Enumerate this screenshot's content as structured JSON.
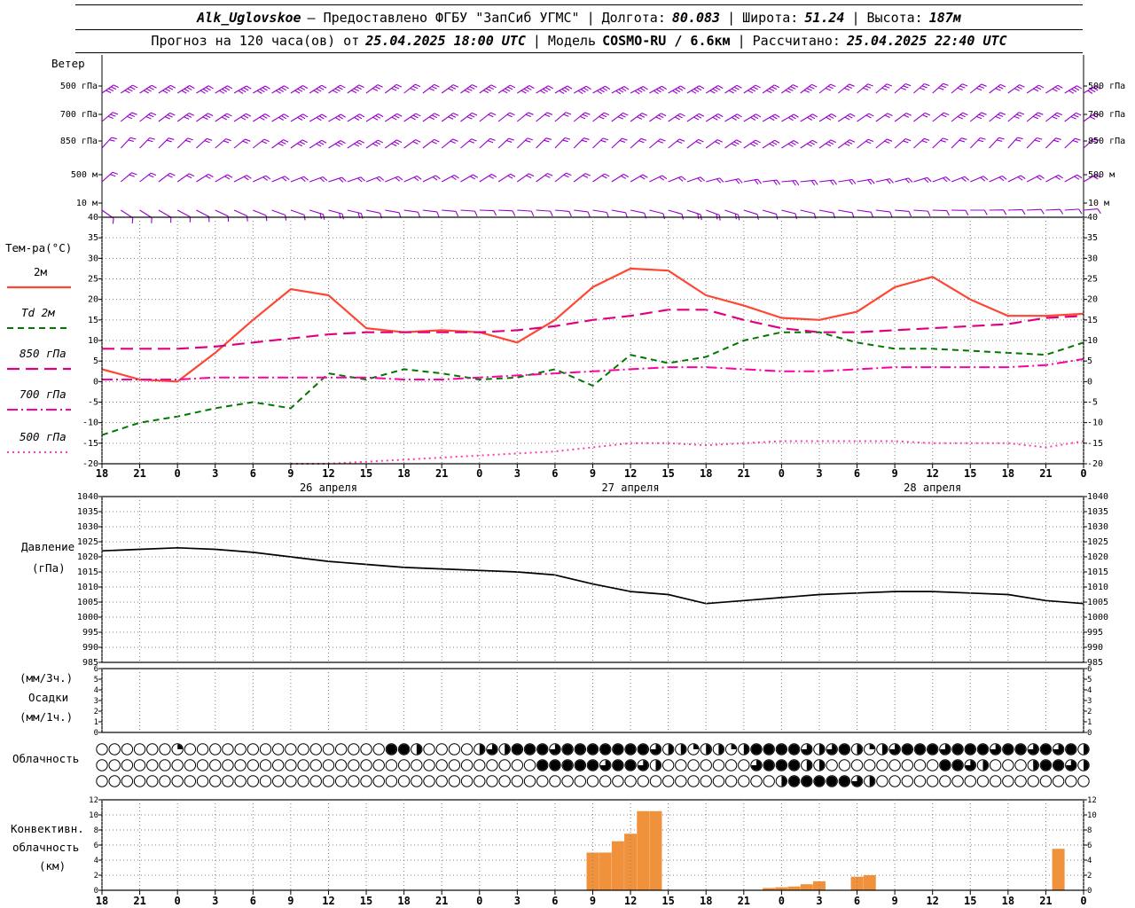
{
  "header": {
    "station": "Alk_Uglovskoe",
    "provider": "– Предоставлено ФГБУ \"ЗапСиб УГМС\"",
    "sep": "|",
    "lon_label": "Долгота:",
    "lon_value": "80.083",
    "lat_label": "Широта:",
    "lat_value": "51.24",
    "alt_label": "Высота:",
    "alt_value": "187м",
    "forecast_prefix": "Прогноз на 120 часа(ов) от",
    "forecast_run": "25.04.2025 18:00 UTC",
    "model_label": "Модель",
    "model_value": "COSMO-RU / 6.6км",
    "calc_label": "Рассчитано:",
    "calc_value": "25.04.2025 22:40 UTC"
  },
  "left": {
    "wind_title": "Ветер",
    "temp_title": "Тем-ра(°C)",
    "legend": [
      {
        "label": "2м"
      },
      {
        "label": "Td 2м"
      },
      {
        "label": "850 гПа"
      },
      {
        "label": "700 гПа"
      },
      {
        "label": "500 гПа"
      }
    ],
    "pressure_1": "Давление",
    "pressure_2": "(гПа)",
    "precip_1": "(мм/3ч.)",
    "precip_2": "Осадки",
    "precip_3": "(мм/1ч.)",
    "cloud": "Облачность",
    "conv_1": "Конвективн.",
    "conv_2": "облачность",
    "conv_3": "(км)"
  },
  "chart_data": {
    "type": "meteogram",
    "x_axis": {
      "span_h": 78,
      "tick_step_h": 3,
      "tick_labels": [
        "18",
        "21",
        "0",
        "3",
        "6",
        "9",
        "12",
        "15",
        "18",
        "21",
        "0",
        "3",
        "6",
        "9",
        "12",
        "15",
        "18",
        "21",
        "0",
        "3",
        "6",
        "9",
        "12",
        "15",
        "18",
        "21",
        "0"
      ],
      "dates": [
        {
          "label": "26 апреля",
          "t": 18
        },
        {
          "label": "27 апреля",
          "t": 42
        },
        {
          "label": "28 апреля",
          "t": 66
        }
      ]
    },
    "wind": {
      "color": "#9900cc",
      "sample_step_h": 6,
      "barb_step_h": 1.5,
      "levels": [
        {
          "label": "500 гПа",
          "y": 97,
          "dirs": [
            55,
            58,
            60,
            56,
            52,
            55,
            60,
            62,
            58,
            54,
            50,
            48,
            54,
            60
          ],
          "spds": [
            20,
            20,
            18,
            18,
            16,
            18,
            20,
            22,
            20,
            18,
            16,
            15,
            16,
            18
          ]
        },
        {
          "label": "700 гПа",
          "y": 129,
          "dirs": [
            50,
            54,
            58,
            60,
            56,
            52,
            50,
            54,
            58,
            60,
            56,
            52,
            50,
            54
          ],
          "spds": [
            14,
            14,
            16,
            16,
            14,
            12,
            12,
            14,
            16,
            14,
            12,
            12,
            14,
            16
          ]
        },
        {
          "label": "850 гПа",
          "y": 159,
          "dirs": [
            42,
            46,
            52,
            58,
            54,
            48,
            44,
            48,
            54,
            58,
            52,
            46,
            42,
            48
          ],
          "spds": [
            10,
            12,
            12,
            14,
            12,
            10,
            10,
            12,
            12,
            14,
            12,
            10,
            10,
            12
          ]
        },
        {
          "label": "500 м",
          "y": 197,
          "dirs": [
            48,
            55,
            65,
            72,
            66,
            58,
            52,
            60,
            75,
            85,
            80,
            70,
            64,
            60
          ],
          "spds": [
            8,
            8,
            10,
            10,
            8,
            8,
            8,
            10,
            10,
            8,
            8,
            8,
            10,
            10
          ]
        },
        {
          "label": "10 м",
          "y": 229,
          "dirs": [
            125,
            118,
            112,
            105,
            98,
            92,
            95,
            102,
            110,
            104,
            98,
            92,
            88,
            85
          ],
          "spds": [
            4,
            6,
            6,
            8,
            6,
            4,
            4,
            6,
            8,
            6,
            4,
            4,
            6,
            6
          ]
        }
      ]
    },
    "temperature": {
      "ylim": [
        -20,
        40
      ],
      "yticks": [
        40,
        35,
        30,
        25,
        20,
        15,
        10,
        5,
        0,
        -5,
        -10,
        -15,
        -20
      ],
      "step_h": 3,
      "series": [
        {
          "name": "2м",
          "color": "#ff4632",
          "dash": "",
          "width": 2.2,
          "values": [
            3,
            0.5,
            0,
            7,
            15,
            22.5,
            21,
            13,
            12,
            12.5,
            12,
            9.5,
            15,
            23,
            27.5,
            27,
            21,
            18.5,
            15.5,
            15,
            17,
            23,
            25.5,
            20,
            16,
            16,
            16.5
          ]
        },
        {
          "name": "Td 2м",
          "color": "#007700",
          "dash": "7,5",
          "width": 2,
          "values": [
            -13,
            -10,
            -8.5,
            -6.5,
            -5,
            -6.5,
            2,
            0.5,
            3,
            2,
            0.5,
            1,
            3,
            -1,
            6.5,
            4.5,
            6,
            10,
            12,
            12,
            9.5,
            8,
            8,
            7.5,
            7,
            6.5,
            9.5
          ]
        },
        {
          "name": "850 гПа",
          "color": "#e0007f",
          "dash": "14,7",
          "width": 2.2,
          "values": [
            8,
            8,
            8,
            8.5,
            9.5,
            10.5,
            11.5,
            12,
            12,
            12,
            12,
            12.5,
            13.5,
            15,
            16,
            17.5,
            17.5,
            15,
            13,
            12,
            12,
            12.5,
            13,
            13.5,
            14,
            15.5,
            16
          ]
        },
        {
          "name": "700 гПа",
          "color": "#ff00a0",
          "dash": "12,4,2,4",
          "width": 2,
          "values": [
            0.5,
            0.5,
            0.5,
            1,
            1,
            1,
            1,
            1,
            0.5,
            0.5,
            1,
            1.5,
            2,
            2.5,
            3,
            3.5,
            3.5,
            3,
            2.5,
            2.5,
            3,
            3.5,
            3.5,
            3.5,
            3.5,
            4,
            5.5
          ]
        },
        {
          "name": "500 гПа",
          "color": "#ff3da8",
          "dash": "2,4",
          "width": 2,
          "values": [
            null,
            null,
            null,
            null,
            null,
            -20,
            -20,
            -19.5,
            -19,
            -18.5,
            -18,
            -17.5,
            -17,
            -16,
            -15,
            -15,
            -15.5,
            -15,
            -14.5,
            -14.5,
            -14.5,
            -14.5,
            -15,
            -15,
            -15,
            -16,
            -14.5
          ]
        }
      ]
    },
    "pressure": {
      "ylim": [
        985,
        1040
      ],
      "yticks": [
        1040,
        1035,
        1030,
        1025,
        1020,
        1015,
        1010,
        1005,
        1000,
        995,
        990,
        985
      ],
      "step_h": 3,
      "color": "#000000",
      "values": [
        1022,
        1022.5,
        1023,
        1022.5,
        1021.5,
        1020,
        1018.5,
        1017.5,
        1016.5,
        1016,
        1015.5,
        1015,
        1014,
        1011,
        1008.5,
        1007.5,
        1004.5,
        1005.5,
        1006.5,
        1007.5,
        1008,
        1008.5,
        1008.5,
        1008,
        1007.5,
        1005.5,
        1004.5
      ]
    },
    "precipitation": {
      "ylim": [
        0,
        6
      ],
      "yticks": [
        6,
        5,
        4,
        3,
        2,
        1,
        0
      ],
      "values": []
    },
    "cloudiness": {
      "fill_scale_eighths": 8,
      "rows": [
        [
          0,
          0,
          0,
          0,
          0,
          0,
          2,
          0,
          0,
          0,
          0,
          0,
          0,
          0,
          0,
          0,
          0,
          0,
          0,
          0,
          0,
          0,
          0,
          8,
          8,
          4,
          0,
          0,
          0,
          0,
          4,
          6,
          4,
          8,
          8,
          8,
          6,
          8,
          8,
          8,
          8,
          8,
          8,
          8,
          6,
          4,
          4,
          2,
          4,
          4,
          2,
          4,
          8,
          8,
          8,
          8,
          6,
          4,
          6,
          8,
          4,
          2,
          4,
          6,
          8,
          8,
          8,
          6,
          8,
          8,
          8,
          6,
          8,
          8,
          6,
          8,
          6,
          8,
          4
        ],
        [
          0,
          0,
          0,
          0,
          0,
          0,
          0,
          0,
          0,
          0,
          0,
          0,
          0,
          0,
          0,
          0,
          0,
          0,
          0,
          0,
          0,
          0,
          0,
          0,
          0,
          0,
          0,
          0,
          0,
          0,
          0,
          0,
          0,
          0,
          0,
          8,
          8,
          8,
          8,
          8,
          6,
          8,
          8,
          6,
          4,
          0,
          0,
          0,
          0,
          0,
          0,
          0,
          6,
          8,
          8,
          8,
          4,
          4,
          0,
          0,
          0,
          0,
          0,
          0,
          0,
          0,
          0,
          8,
          8,
          6,
          4,
          0,
          0,
          0,
          4,
          8,
          8,
          6,
          4
        ],
        [
          0,
          0,
          0,
          0,
          0,
          0,
          0,
          0,
          0,
          0,
          0,
          0,
          0,
          0,
          0,
          0,
          0,
          0,
          0,
          0,
          0,
          0,
          0,
          0,
          0,
          0,
          0,
          0,
          0,
          0,
          0,
          0,
          0,
          0,
          0,
          0,
          0,
          0,
          0,
          0,
          0,
          0,
          0,
          0,
          0,
          0,
          0,
          0,
          0,
          0,
          0,
          0,
          0,
          0,
          4,
          8,
          8,
          8,
          8,
          8,
          6,
          4,
          0,
          0,
          0,
          0,
          0,
          0,
          0,
          0,
          0,
          0,
          0,
          0,
          0,
          0,
          0,
          0,
          0
        ]
      ]
    },
    "convective": {
      "ylim": [
        0,
        12
      ],
      "yticks": [
        12,
        10,
        8,
        6,
        4,
        2,
        0
      ],
      "color": "#f0913c",
      "bars": [
        {
          "t": 39,
          "h": 5
        },
        {
          "t": 40,
          "h": 5
        },
        {
          "t": 41,
          "h": 6.5
        },
        {
          "t": 42,
          "h": 7.5
        },
        {
          "t": 43,
          "h": 10.5
        },
        {
          "t": 44,
          "h": 10.5
        },
        {
          "t": 53,
          "h": 0.3
        },
        {
          "t": 54,
          "h": 0.4
        },
        {
          "t": 55,
          "h": 0.5
        },
        {
          "t": 56,
          "h": 0.8
        },
        {
          "t": 57,
          "h": 1.2
        },
        {
          "t": 60,
          "h": 1.8
        },
        {
          "t": 61,
          "h": 2
        },
        {
          "t": 76,
          "h": 5.5
        }
      ]
    }
  }
}
